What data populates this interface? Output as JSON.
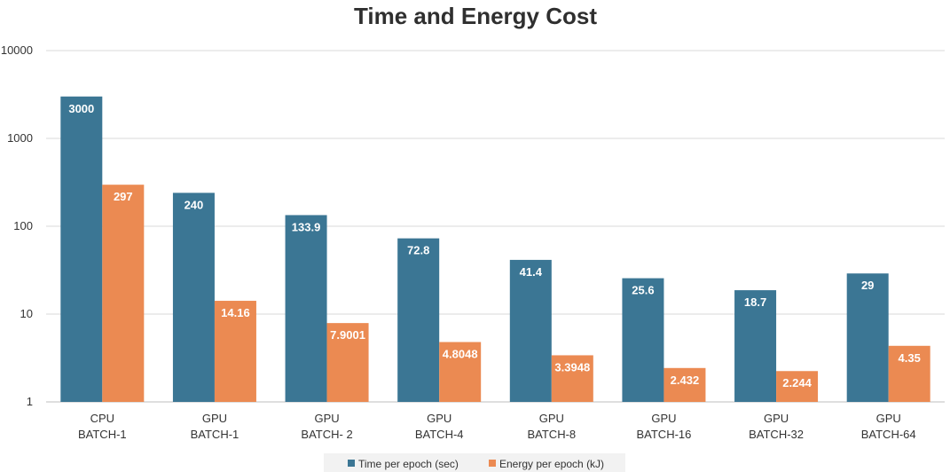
{
  "chart_data": {
    "type": "bar",
    "title": "Time and Energy Cost",
    "xlabel": "",
    "ylabel": "",
    "yscale": "log",
    "ylim": [
      1,
      10000
    ],
    "y_ticks": [
      "1",
      "10",
      "100",
      "1000",
      "10000"
    ],
    "grid": true,
    "legend_position": "bottom",
    "categories": [
      [
        "CPU",
        "BATCH-1"
      ],
      [
        "GPU",
        "BATCH-1"
      ],
      [
        "GPU",
        "BATCH- 2"
      ],
      [
        "GPU",
        "BATCH-4"
      ],
      [
        "GPU",
        "BATCH-8"
      ],
      [
        "GPU",
        "BATCH-16"
      ],
      [
        "GPU",
        "BATCH-32"
      ],
      [
        "GPU",
        "BATCH-64"
      ]
    ],
    "series": [
      {
        "name": "Time per epoch (sec)",
        "color": "#3b7694",
        "values": [
          3000,
          240,
          133.9,
          72.8,
          41.4,
          25.6,
          18.7,
          29
        ],
        "labels": [
          "3000",
          "240",
          "133.9",
          "72.8",
          "41.4",
          "25.6",
          "18.7",
          "29"
        ]
      },
      {
        "name": "Energy per epoch (kJ)",
        "color": "#eb8a52",
        "values": [
          297,
          14.16,
          7.9001,
          4.8048,
          3.3948,
          2.432,
          2.244,
          4.35
        ],
        "labels": [
          "297",
          "14.16",
          "7.9001",
          "4.8048",
          "3.3948",
          "2.432",
          "2.244",
          "4.35"
        ]
      }
    ]
  }
}
